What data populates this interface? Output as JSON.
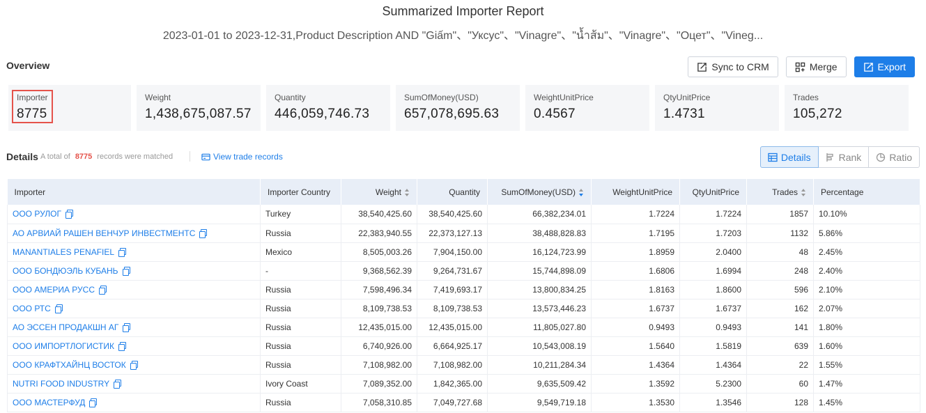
{
  "report": {
    "title": "Summarized Importer Report",
    "subtitle": "2023-01-01 to 2023-12-31,Product Description AND \"Giấm\"、\"Уксус\"、\"Vinagre\"、\"น้ำส้ม\"、\"Vinagre\"、\"Оцет\"、\"Vineg..."
  },
  "overview": {
    "label": "Overview",
    "buttons": {
      "sync": "Sync to CRM",
      "merge": "Merge",
      "export": "Export"
    },
    "stats": [
      {
        "label": "Importer",
        "value": "8775"
      },
      {
        "label": "Weight",
        "value": "1,438,675,087.57"
      },
      {
        "label": "Quantity",
        "value": "446,059,746.73"
      },
      {
        "label": "SumOfMoney(USD)",
        "value": "657,078,695.63"
      },
      {
        "label": "WeightUnitPrice",
        "value": "0.4567"
      },
      {
        "label": "QtyUnitPrice",
        "value": "1.4731"
      },
      {
        "label": "Trades",
        "value": "105,272"
      }
    ]
  },
  "details": {
    "label": "Details",
    "matched_prefix": "A total of",
    "matched_count": "8775",
    "matched_suffix": "records were matched",
    "view_trade": "View trade records",
    "views": {
      "details": "Details",
      "rank": "Rank",
      "ratio": "Ratio"
    }
  },
  "table": {
    "columns": [
      "Importer",
      "Importer Country",
      "Weight",
      "Quantity",
      "SumOfMoney(USD)",
      "WeightUnitPrice",
      "QtyUnitPrice",
      "Trades",
      "Percentage"
    ],
    "rows": [
      {
        "importer": "ООО РУЛОГ",
        "country": "Turkey",
        "weight": "38,540,425.60",
        "quantity": "38,540,425.60",
        "money": "66,382,234.01",
        "wup": "1.7224",
        "qup": "1.7224",
        "trades": "1857",
        "pct": "10.10%"
      },
      {
        "importer": "АО АРВИАЙ РАШЕН ВЕНЧУР ИНВЕСТМЕНТС",
        "country": "Russia",
        "weight": "22,383,940.55",
        "quantity": "22,373,127.13",
        "money": "38,488,828.83",
        "wup": "1.7195",
        "qup": "1.7203",
        "trades": "1132",
        "pct": "5.86%"
      },
      {
        "importer": "MANANTIALES PENAFIEL",
        "country": "Mexico",
        "weight": "8,505,003.26",
        "quantity": "7,904,150.00",
        "money": "16,124,723.99",
        "wup": "1.8959",
        "qup": "2.0400",
        "trades": "48",
        "pct": "2.45%"
      },
      {
        "importer": "ООО БОНДЮЭЛЬ КУБАНЬ",
        "country": "-",
        "weight": "9,368,562.39",
        "quantity": "9,264,731.67",
        "money": "15,744,898.09",
        "wup": "1.6806",
        "qup": "1.6994",
        "trades": "248",
        "pct": "2.40%"
      },
      {
        "importer": "ООО АМЕРИА РУСС",
        "country": "Russia",
        "weight": "7,598,496.34",
        "quantity": "7,419,693.17",
        "money": "13,800,834.25",
        "wup": "1.8163",
        "qup": "1.8600",
        "trades": "596",
        "pct": "2.10%"
      },
      {
        "importer": "ООО РТС",
        "country": "Russia",
        "weight": "8,109,738.53",
        "quantity": "8,109,738.53",
        "money": "13,573,446.23",
        "wup": "1.6737",
        "qup": "1.6737",
        "trades": "162",
        "pct": "2.07%"
      },
      {
        "importer": "АО ЭССЕН ПРОДАКШН АГ",
        "country": "Russia",
        "weight": "12,435,015.00",
        "quantity": "12,435,015.00",
        "money": "11,805,027.80",
        "wup": "0.9493",
        "qup": "0.9493",
        "trades": "141",
        "pct": "1.80%"
      },
      {
        "importer": "ООО ИМПОРТЛОГИСТИК",
        "country": "Russia",
        "weight": "6,740,926.00",
        "quantity": "6,664,925.17",
        "money": "10,543,008.19",
        "wup": "1.5640",
        "qup": "1.5819",
        "trades": "639",
        "pct": "1.60%"
      },
      {
        "importer": "ООО КРАФТХАЙНЦ ВОСТОК",
        "country": "Russia",
        "weight": "7,108,982.00",
        "quantity": "7,108,982.00",
        "money": "10,211,284.34",
        "wup": "1.4364",
        "qup": "1.4364",
        "trades": "22",
        "pct": "1.55%"
      },
      {
        "importer": "NUTRI FOOD INDUSTRY",
        "country": "Ivory Coast",
        "weight": "7,089,352.00",
        "quantity": "1,842,365.00",
        "money": "9,635,509.42",
        "wup": "1.3592",
        "qup": "5.2300",
        "trades": "60",
        "pct": "1.47%"
      },
      {
        "importer": "ООО МАСТЕРФУД",
        "country": "Russia",
        "weight": "7,058,310.85",
        "quantity": "7,049,727.68",
        "money": "9,549,719.18",
        "wup": "1.3530",
        "qup": "1.3546",
        "trades": "128",
        "pct": "1.45%"
      }
    ]
  }
}
